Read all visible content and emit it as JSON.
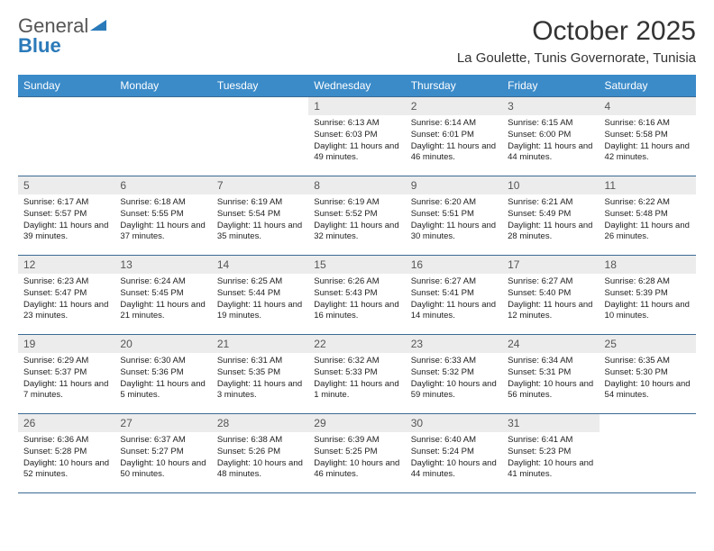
{
  "header": {
    "logo_general": "General",
    "logo_blue": "Blue",
    "month_title": "October 2025",
    "location": "La Goulette, Tunis Governorate, Tunisia"
  },
  "styling": {
    "header_bg": "#3b8bc9",
    "header_text": "#ffffff",
    "daynum_bg": "#ececec",
    "text_color": "#222222",
    "border_color": "#3b6a94",
    "font_family": "Arial",
    "cell_font_size_pt": 7,
    "header_font_size_pt": 9
  },
  "day_names": [
    "Sunday",
    "Monday",
    "Tuesday",
    "Wednesday",
    "Thursday",
    "Friday",
    "Saturday"
  ],
  "weeks": [
    [
      null,
      null,
      null,
      {
        "n": "1",
        "sr": "6:13 AM",
        "ss": "6:03 PM",
        "dl": "11 hours and 49 minutes."
      },
      {
        "n": "2",
        "sr": "6:14 AM",
        "ss": "6:01 PM",
        "dl": "11 hours and 46 minutes."
      },
      {
        "n": "3",
        "sr": "6:15 AM",
        "ss": "6:00 PM",
        "dl": "11 hours and 44 minutes."
      },
      {
        "n": "4",
        "sr": "6:16 AM",
        "ss": "5:58 PM",
        "dl": "11 hours and 42 minutes."
      }
    ],
    [
      {
        "n": "5",
        "sr": "6:17 AM",
        "ss": "5:57 PM",
        "dl": "11 hours and 39 minutes."
      },
      {
        "n": "6",
        "sr": "6:18 AM",
        "ss": "5:55 PM",
        "dl": "11 hours and 37 minutes."
      },
      {
        "n": "7",
        "sr": "6:19 AM",
        "ss": "5:54 PM",
        "dl": "11 hours and 35 minutes."
      },
      {
        "n": "8",
        "sr": "6:19 AM",
        "ss": "5:52 PM",
        "dl": "11 hours and 32 minutes."
      },
      {
        "n": "9",
        "sr": "6:20 AM",
        "ss": "5:51 PM",
        "dl": "11 hours and 30 minutes."
      },
      {
        "n": "10",
        "sr": "6:21 AM",
        "ss": "5:49 PM",
        "dl": "11 hours and 28 minutes."
      },
      {
        "n": "11",
        "sr": "6:22 AM",
        "ss": "5:48 PM",
        "dl": "11 hours and 26 minutes."
      }
    ],
    [
      {
        "n": "12",
        "sr": "6:23 AM",
        "ss": "5:47 PM",
        "dl": "11 hours and 23 minutes."
      },
      {
        "n": "13",
        "sr": "6:24 AM",
        "ss": "5:45 PM",
        "dl": "11 hours and 21 minutes."
      },
      {
        "n": "14",
        "sr": "6:25 AM",
        "ss": "5:44 PM",
        "dl": "11 hours and 19 minutes."
      },
      {
        "n": "15",
        "sr": "6:26 AM",
        "ss": "5:43 PM",
        "dl": "11 hours and 16 minutes."
      },
      {
        "n": "16",
        "sr": "6:27 AM",
        "ss": "5:41 PM",
        "dl": "11 hours and 14 minutes."
      },
      {
        "n": "17",
        "sr": "6:27 AM",
        "ss": "5:40 PM",
        "dl": "11 hours and 12 minutes."
      },
      {
        "n": "18",
        "sr": "6:28 AM",
        "ss": "5:39 PM",
        "dl": "11 hours and 10 minutes."
      }
    ],
    [
      {
        "n": "19",
        "sr": "6:29 AM",
        "ss": "5:37 PM",
        "dl": "11 hours and 7 minutes."
      },
      {
        "n": "20",
        "sr": "6:30 AM",
        "ss": "5:36 PM",
        "dl": "11 hours and 5 minutes."
      },
      {
        "n": "21",
        "sr": "6:31 AM",
        "ss": "5:35 PM",
        "dl": "11 hours and 3 minutes."
      },
      {
        "n": "22",
        "sr": "6:32 AM",
        "ss": "5:33 PM",
        "dl": "11 hours and 1 minute."
      },
      {
        "n": "23",
        "sr": "6:33 AM",
        "ss": "5:32 PM",
        "dl": "10 hours and 59 minutes."
      },
      {
        "n": "24",
        "sr": "6:34 AM",
        "ss": "5:31 PM",
        "dl": "10 hours and 56 minutes."
      },
      {
        "n": "25",
        "sr": "6:35 AM",
        "ss": "5:30 PM",
        "dl": "10 hours and 54 minutes."
      }
    ],
    [
      {
        "n": "26",
        "sr": "6:36 AM",
        "ss": "5:28 PM",
        "dl": "10 hours and 52 minutes."
      },
      {
        "n": "27",
        "sr": "6:37 AM",
        "ss": "5:27 PM",
        "dl": "10 hours and 50 minutes."
      },
      {
        "n": "28",
        "sr": "6:38 AM",
        "ss": "5:26 PM",
        "dl": "10 hours and 48 minutes."
      },
      {
        "n": "29",
        "sr": "6:39 AM",
        "ss": "5:25 PM",
        "dl": "10 hours and 46 minutes."
      },
      {
        "n": "30",
        "sr": "6:40 AM",
        "ss": "5:24 PM",
        "dl": "10 hours and 44 minutes."
      },
      {
        "n": "31",
        "sr": "6:41 AM",
        "ss": "5:23 PM",
        "dl": "10 hours and 41 minutes."
      },
      null
    ]
  ],
  "labels": {
    "sunrise": "Sunrise:",
    "sunset": "Sunset:",
    "daylight": "Daylight:"
  }
}
